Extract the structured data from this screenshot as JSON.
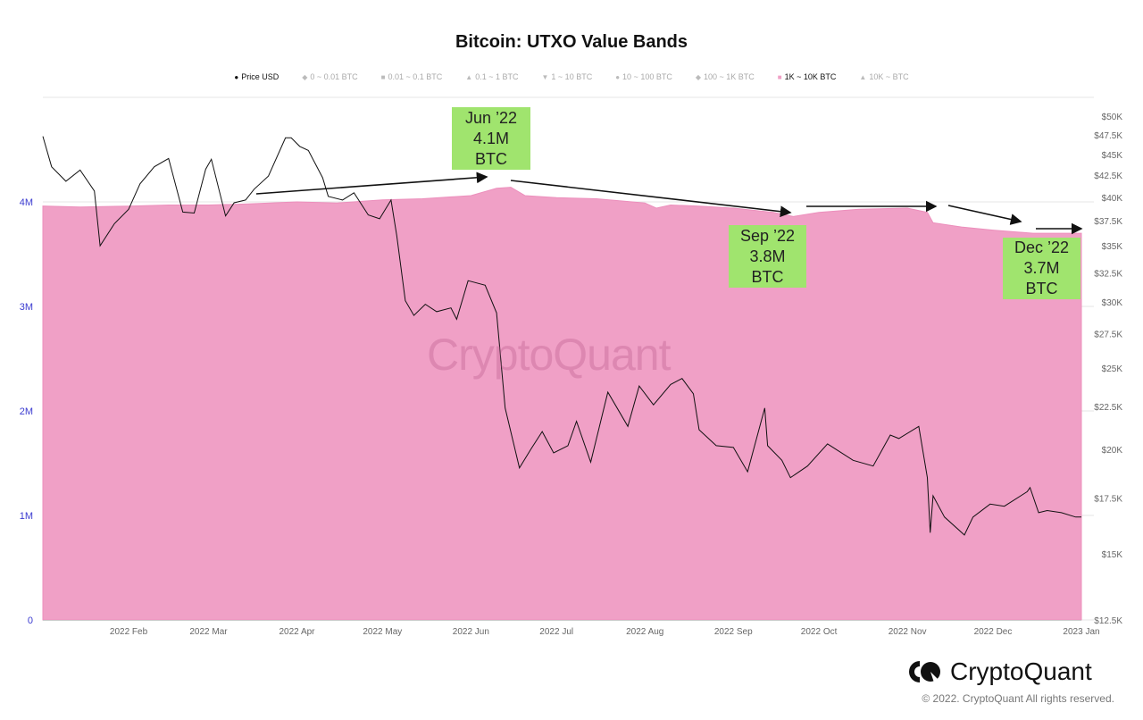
{
  "title": "Bitcoin: UTXO Value Bands",
  "legend": [
    {
      "label": "Price USD",
      "marker": "●",
      "active": true
    },
    {
      "label": "0 ~ 0.01 BTC",
      "marker": "◆",
      "active": false
    },
    {
      "label": "0.01 ~ 0.1 BTC",
      "marker": "■",
      "active": false
    },
    {
      "label": "0.1 ~ 1 BTC",
      "marker": "▲",
      "active": false
    },
    {
      "label": "1 ~ 10 BTC",
      "marker": "▼",
      "active": false
    },
    {
      "label": "10 ~ 100 BTC",
      "marker": "●",
      "active": false
    },
    {
      "label": "100 ~ 1K BTC",
      "marker": "◆",
      "active": false
    },
    {
      "label": "1K ~ 10K BTC",
      "marker": "■",
      "active": true
    },
    {
      "label": "10K ~ BTC",
      "marker": "▲",
      "active": false
    }
  ],
  "annotations": [
    {
      "lines": [
        "Jun ’22",
        "4.1M",
        "BTC"
      ]
    },
    {
      "lines": [
        "Sep ’22",
        "3.8M",
        "BTC"
      ]
    },
    {
      "lines": [
        "Dec ’22",
        "3.7M",
        "BTC"
      ]
    }
  ],
  "watermark": "CryptoQuant",
  "brand": {
    "name": "CryptoQuant",
    "copyright": "© 2022. CryptoQuant All rights reserved."
  },
  "colors": {
    "band": "#f0a0c6",
    "band_edge": "#ec8fbc",
    "price": "#111111",
    "annotation": "#a0e46e",
    "left_axis": "#3b3bd0"
  },
  "chart_data": {
    "type": "area+line",
    "title": "Bitcoin: UTXO Value Bands",
    "x_ticks": [
      "2022 Feb",
      "2022 Mar",
      "2022 Apr",
      "2022 May",
      "2022 Jun",
      "2022 Jul",
      "2022 Aug",
      "2022 Sep",
      "2022 Oct",
      "2022 Nov",
      "2022 Dec",
      "2023 Jan"
    ],
    "x_tick_dates": [
      "2022-02-01",
      "2022-03-01",
      "2022-04-01",
      "2022-05-01",
      "2022-06-01",
      "2022-07-01",
      "2022-08-01",
      "2022-09-01",
      "2022-10-01",
      "2022-11-01",
      "2022-12-01",
      "2023-01-01"
    ],
    "x_range": [
      "2022-01-01",
      "2023-01-01"
    ],
    "y_left": {
      "ticks": [
        "0",
        "1M",
        "2M",
        "3M",
        "4M"
      ],
      "tick_values": [
        0,
        1000000,
        2000000,
        3000000,
        4000000
      ],
      "range": [
        0,
        4800000
      ],
      "scale": "linear"
    },
    "y_right": {
      "ticks": [
        "$12.5K",
        "$15K",
        "$17.5K",
        "$20K",
        "$22.5K",
        "$25K",
        "$27.5K",
        "$30K",
        "$32.5K",
        "$35K",
        "$37.5K",
        "$40K",
        "$42.5K",
        "$45K",
        "$47.5K",
        "$50K"
      ],
      "tick_values": [
        12500,
        15000,
        17500,
        20000,
        22500,
        25000,
        27500,
        30000,
        32500,
        35000,
        37500,
        40000,
        42500,
        45000,
        47500,
        50000
      ],
      "range": [
        12500,
        50000
      ],
      "scale": "log"
    },
    "grid": "horizontal",
    "legend_position": "top",
    "series": [
      {
        "name": "1K ~ 10K BTC",
        "axis": "left",
        "kind": "area",
        "points": [
          [
            "2022-01-01",
            3960000
          ],
          [
            "2022-01-15",
            3950000
          ],
          [
            "2022-02-01",
            3960000
          ],
          [
            "2022-02-15",
            3970000
          ],
          [
            "2022-03-01",
            3970000
          ],
          [
            "2022-03-15",
            3980000
          ],
          [
            "2022-04-01",
            4000000
          ],
          [
            "2022-04-15",
            3990000
          ],
          [
            "2022-05-01",
            4020000
          ],
          [
            "2022-05-15",
            4030000
          ],
          [
            "2022-06-01",
            4060000
          ],
          [
            "2022-06-10",
            4130000
          ],
          [
            "2022-06-15",
            4140000
          ],
          [
            "2022-06-20",
            4060000
          ],
          [
            "2022-07-01",
            4040000
          ],
          [
            "2022-07-15",
            4030000
          ],
          [
            "2022-08-01",
            3990000
          ],
          [
            "2022-08-05",
            3940000
          ],
          [
            "2022-08-10",
            3970000
          ],
          [
            "2022-08-20",
            3960000
          ],
          [
            "2022-09-01",
            3940000
          ],
          [
            "2022-09-15",
            3900000
          ],
          [
            "2022-09-22",
            3860000
          ],
          [
            "2022-10-01",
            3900000
          ],
          [
            "2022-10-15",
            3930000
          ],
          [
            "2022-11-01",
            3940000
          ],
          [
            "2022-11-08",
            3900000
          ],
          [
            "2022-11-10",
            3800000
          ],
          [
            "2022-11-20",
            3760000
          ],
          [
            "2022-12-01",
            3730000
          ],
          [
            "2022-12-15",
            3700000
          ],
          [
            "2023-01-01",
            3700000
          ]
        ]
      },
      {
        "name": "Price USD",
        "axis": "right",
        "kind": "line",
        "points": [
          [
            "2022-01-01",
            47300
          ],
          [
            "2022-01-05",
            43500
          ],
          [
            "2022-01-10",
            41800
          ],
          [
            "2022-01-15",
            43100
          ],
          [
            "2022-01-20",
            40700
          ],
          [
            "2022-01-22",
            35000
          ],
          [
            "2022-01-27",
            37200
          ],
          [
            "2022-02-01",
            38700
          ],
          [
            "2022-02-05",
            41500
          ],
          [
            "2022-02-10",
            43500
          ],
          [
            "2022-02-15",
            44500
          ],
          [
            "2022-02-20",
            38400
          ],
          [
            "2022-02-24",
            38300
          ],
          [
            "2022-02-28",
            43200
          ],
          [
            "2022-03-02",
            44400
          ],
          [
            "2022-03-07",
            38000
          ],
          [
            "2022-03-10",
            39400
          ],
          [
            "2022-03-14",
            39700
          ],
          [
            "2022-03-17",
            40900
          ],
          [
            "2022-03-22",
            42400
          ],
          [
            "2022-03-28",
            47100
          ],
          [
            "2022-03-30",
            47100
          ],
          [
            "2022-04-02",
            46000
          ],
          [
            "2022-04-05",
            45500
          ],
          [
            "2022-04-10",
            42200
          ],
          [
            "2022-04-12",
            40100
          ],
          [
            "2022-04-17",
            39700
          ],
          [
            "2022-04-21",
            40500
          ],
          [
            "2022-04-26",
            38100
          ],
          [
            "2022-04-30",
            37700
          ],
          [
            "2022-05-04",
            39700
          ],
          [
            "2022-05-06",
            36000
          ],
          [
            "2022-05-09",
            30100
          ],
          [
            "2022-05-12",
            28900
          ],
          [
            "2022-05-16",
            29800
          ],
          [
            "2022-05-20",
            29200
          ],
          [
            "2022-05-25",
            29500
          ],
          [
            "2022-05-27",
            28600
          ],
          [
            "2022-05-31",
            31800
          ],
          [
            "2022-06-06",
            31400
          ],
          [
            "2022-06-10",
            29100
          ],
          [
            "2022-06-13",
            22400
          ],
          [
            "2022-06-18",
            19000
          ],
          [
            "2022-06-22",
            20000
          ],
          [
            "2022-06-26",
            21000
          ],
          [
            "2022-06-30",
            19800
          ],
          [
            "2022-07-05",
            20200
          ],
          [
            "2022-07-08",
            21600
          ],
          [
            "2022-07-13",
            19300
          ],
          [
            "2022-07-19",
            23400
          ],
          [
            "2022-07-26",
            21300
          ],
          [
            "2022-07-30",
            23800
          ],
          [
            "2022-08-04",
            22600
          ],
          [
            "2022-08-10",
            23900
          ],
          [
            "2022-08-14",
            24300
          ],
          [
            "2022-08-18",
            23300
          ],
          [
            "2022-08-20",
            21100
          ],
          [
            "2022-08-26",
            20200
          ],
          [
            "2022-09-01",
            20100
          ],
          [
            "2022-09-06",
            18800
          ],
          [
            "2022-09-12",
            22400
          ],
          [
            "2022-09-13",
            20200
          ],
          [
            "2022-09-18",
            19400
          ],
          [
            "2022-09-21",
            18500
          ],
          [
            "2022-09-27",
            19100
          ],
          [
            "2022-10-04",
            20300
          ],
          [
            "2022-10-13",
            19400
          ],
          [
            "2022-10-20",
            19100
          ],
          [
            "2022-10-26",
            20800
          ],
          [
            "2022-10-29",
            20600
          ],
          [
            "2022-11-05",
            21300
          ],
          [
            "2022-11-08",
            18500
          ],
          [
            "2022-11-09",
            15900
          ],
          [
            "2022-11-10",
            17600
          ],
          [
            "2022-11-14",
            16600
          ],
          [
            "2022-11-21",
            15800
          ],
          [
            "2022-11-24",
            16600
          ],
          [
            "2022-11-30",
            17200
          ],
          [
            "2022-12-05",
            17100
          ],
          [
            "2022-12-13",
            17800
          ],
          [
            "2022-12-14",
            18000
          ],
          [
            "2022-12-17",
            16800
          ],
          [
            "2022-12-20",
            16900
          ],
          [
            "2022-12-25",
            16800
          ],
          [
            "2022-12-30",
            16600
          ],
          [
            "2023-01-01",
            16600
          ]
        ]
      }
    ]
  }
}
